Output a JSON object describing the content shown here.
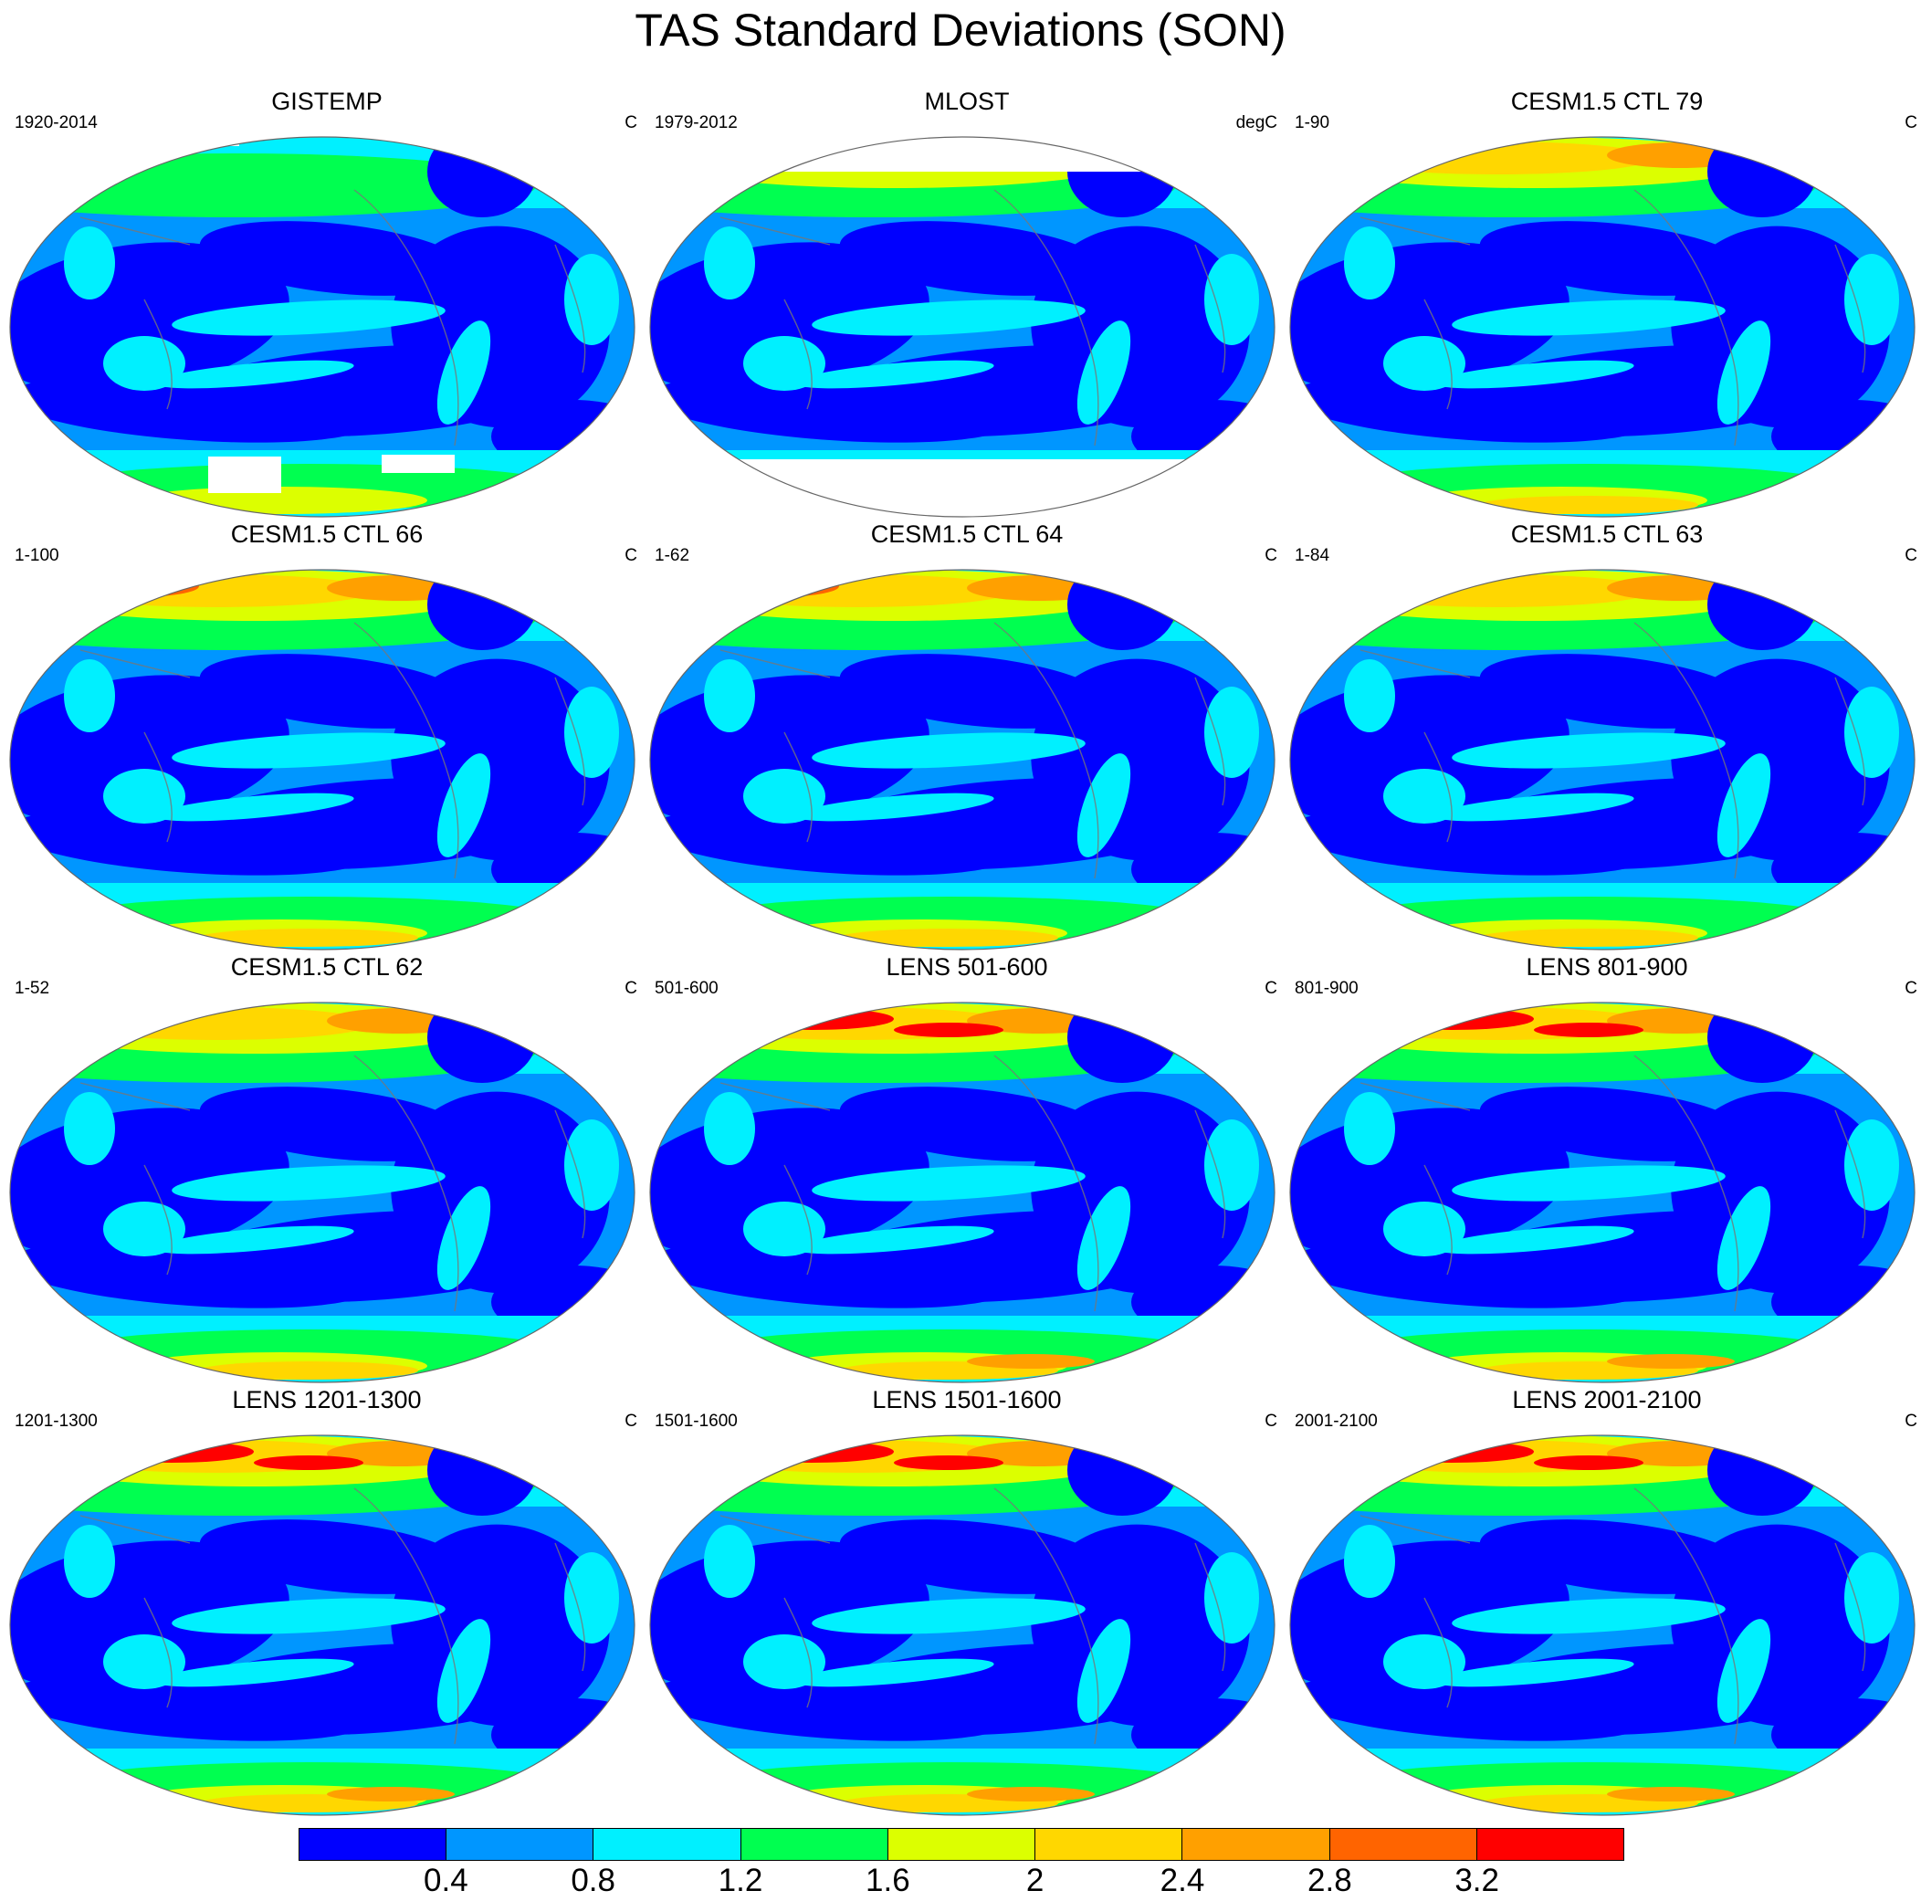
{
  "title": "TAS Standard Deviations (SON)",
  "colorbar": {
    "colors": [
      "#0000ff",
      "#0096ff",
      "#00f0ff",
      "#00ff50",
      "#dcff00",
      "#ffd700",
      "#ffa000",
      "#ff6400",
      "#ff0000"
    ],
    "labels": [
      "0.4",
      "0.8",
      "1.2",
      "1.6",
      "2",
      "2.4",
      "2.8",
      "3.2"
    ]
  },
  "panels": [
    {
      "title": "GISTEMP",
      "left_label": "1920-2014",
      "right_label": "C",
      "missing": "both",
      "arctic": 1,
      "antarctic": 2
    },
    {
      "title": "MLOST",
      "left_label": "1979-2012",
      "right_label": "degC",
      "missing": "mlost",
      "arctic": 3,
      "antarctic": 0
    },
    {
      "title": "CESM1.5 CTL 79",
      "left_label": "1-90",
      "right_label": "C",
      "missing": "none",
      "arctic": 5,
      "antarctic": 3
    },
    {
      "title": "CESM1.5 CTL 66",
      "left_label": "1-100",
      "right_label": "C",
      "missing": "none",
      "arctic": 6,
      "antarctic": 3
    },
    {
      "title": "CESM1.5 CTL 64",
      "left_label": "1-62",
      "right_label": "C",
      "missing": "none",
      "arctic": 6,
      "antarctic": 3
    },
    {
      "title": "CESM1.5 CTL 63",
      "left_label": "1-84",
      "right_label": "C",
      "missing": "none",
      "arctic": 5,
      "antarctic": 3
    },
    {
      "title": "CESM1.5 CTL 62",
      "left_label": "1-52",
      "right_label": "C",
      "missing": "none",
      "arctic": 5,
      "antarctic": 3
    },
    {
      "title": "LENS 501-600",
      "left_label": "501-600",
      "right_label": "C",
      "missing": "none",
      "arctic": 7,
      "antarctic": 4
    },
    {
      "title": "LENS 801-900",
      "left_label": "801-900",
      "right_label": "C",
      "missing": "none",
      "arctic": 7,
      "antarctic": 4
    },
    {
      "title": "LENS 1201-1300",
      "left_label": "1201-1300",
      "right_label": "C",
      "missing": "none",
      "arctic": 7,
      "antarctic": 4
    },
    {
      "title": "LENS 1501-1600",
      "left_label": "1501-1600",
      "right_label": "C",
      "missing": "none",
      "arctic": 7,
      "antarctic": 4
    },
    {
      "title": "LENS 2001-2100",
      "left_label": "2001-2100",
      "right_label": "C",
      "missing": "none",
      "arctic": 7,
      "antarctic": 4
    }
  ]
}
